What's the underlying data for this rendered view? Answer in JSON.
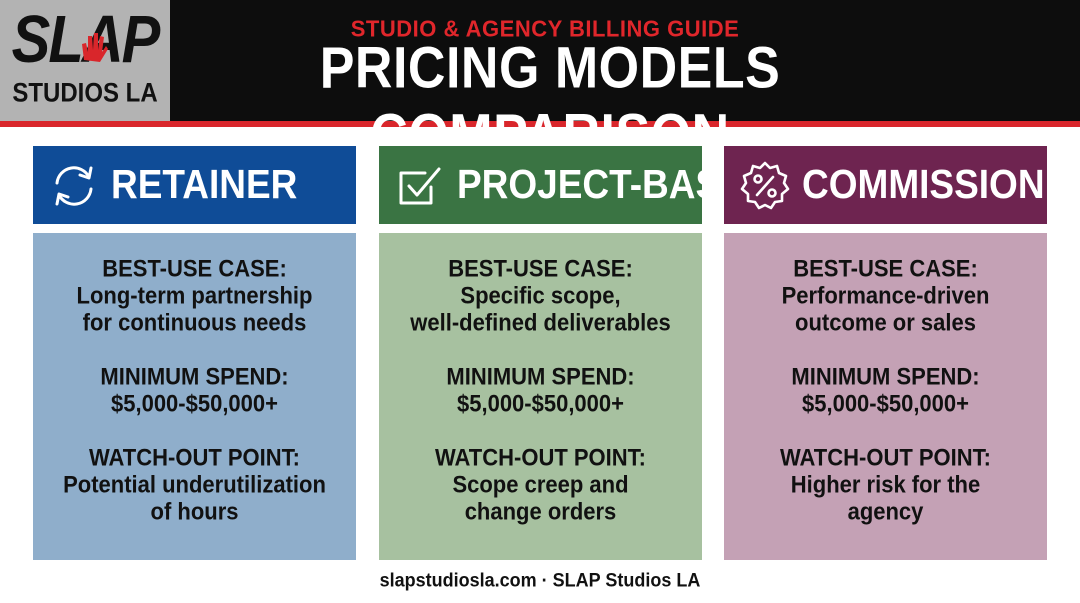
{
  "header": {
    "logo_top": "SLAP",
    "logo_bottom": "STUDIOS LA",
    "subtitle": "STUDIO & AGENCY BILLING GUIDE",
    "title": "PRICING MODELS COMPARISON"
  },
  "colors": {
    "accent": "#d9262b",
    "retainer_head": "#0f4c97",
    "retainer_body": "#8faecb",
    "project_head": "#3a7443",
    "project_body": "#a7c1a0",
    "commission_head": "#6e2450",
    "commission_body": "#c4a1b5"
  },
  "columns": [
    {
      "name": "RETAINER",
      "icon": "refresh-icon",
      "best_use_label": "BEST-USE CASE:",
      "best_use_line1": "Long-term partnership",
      "best_use_line2": "for continuous needs",
      "min_spend_label": "MINIMUM SPEND:",
      "min_spend_value": "$5,000-$50,000+",
      "watch_label": "WATCH-OUT POINT:",
      "watch_line1": "Potential underutilization",
      "watch_line2": "of hours"
    },
    {
      "name": "PROJECT-BASED",
      "icon": "checkbox-icon",
      "best_use_label": "BEST-USE CASE:",
      "best_use_line1": "Specific scope,",
      "best_use_line2": "well-defined deliverables",
      "min_spend_label": "MINIMUM SPEND:",
      "min_spend_value": "$5,000-$50,000+",
      "watch_label": "WATCH-OUT POINT:",
      "watch_line1": "Scope creep and",
      "watch_line2": "change orders"
    },
    {
      "name": "COMMISSION",
      "icon": "percent-badge-icon",
      "best_use_label": "BEST-USE CASE:",
      "best_use_line1": "Performance-driven",
      "best_use_line2": "outcome or sales",
      "min_spend_label": "MINIMUM SPEND:",
      "min_spend_value": "$5,000-$50,000+",
      "watch_label": "WATCH-OUT POINT:",
      "watch_line1": "Higher risk for the",
      "watch_line2": "agency"
    }
  ],
  "footer": "slapstudiosla.com · SLAP Studios LA"
}
